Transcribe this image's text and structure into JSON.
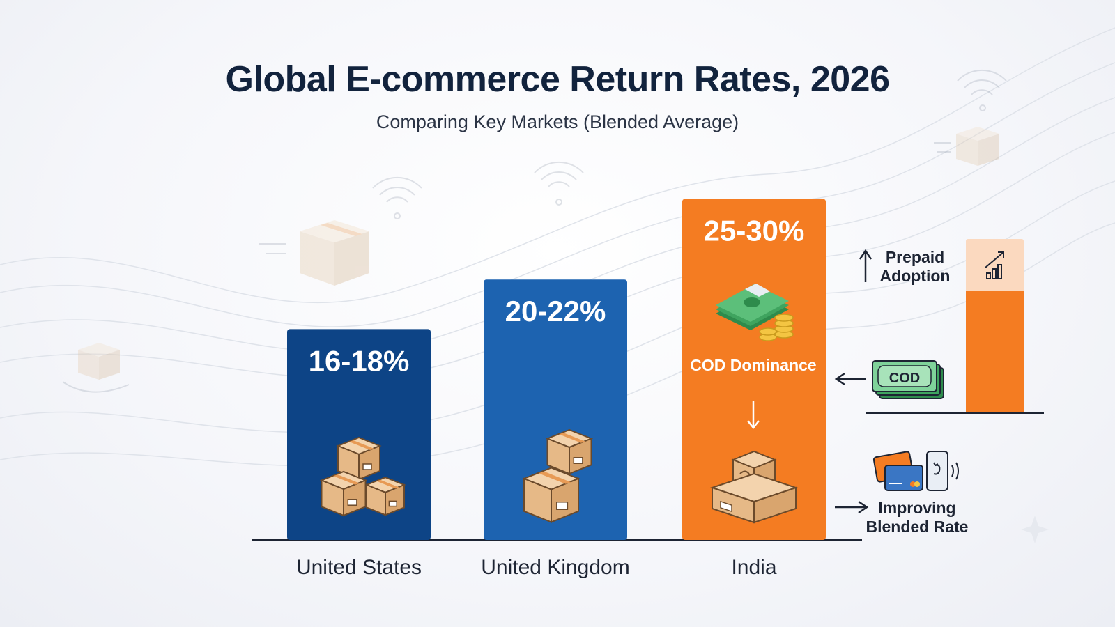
{
  "title": "Global E-commerce Return Rates, 2026",
  "subtitle": "Comparing Key Markets (Blended Average)",
  "chart_data": {
    "type": "bar",
    "categories": [
      "United States",
      "United Kingdom",
      "India"
    ],
    "values": [
      17,
      21,
      27.5
    ],
    "value_labels": [
      "16-18%",
      "20-22%",
      "25-30%"
    ],
    "ranges": [
      [
        16,
        18
      ],
      [
        20,
        22
      ],
      [
        25,
        30
      ]
    ],
    "colors": [
      "#0d4486",
      "#1d63b0",
      "#f47c22"
    ],
    "ylim": [
      0,
      30
    ],
    "grid": false
  },
  "annotations": {
    "cod_inner": "COD Dominance",
    "cod_badge": "COD",
    "prepaid": "Prepaid Adoption",
    "improving": "Improving Blended Rate"
  },
  "icons": [
    "box-stack-icon",
    "cash-coins-icon",
    "return-box-icon",
    "cod-cash-icon",
    "growth-chart-icon",
    "card-icon",
    "phone-payment-icon"
  ]
}
